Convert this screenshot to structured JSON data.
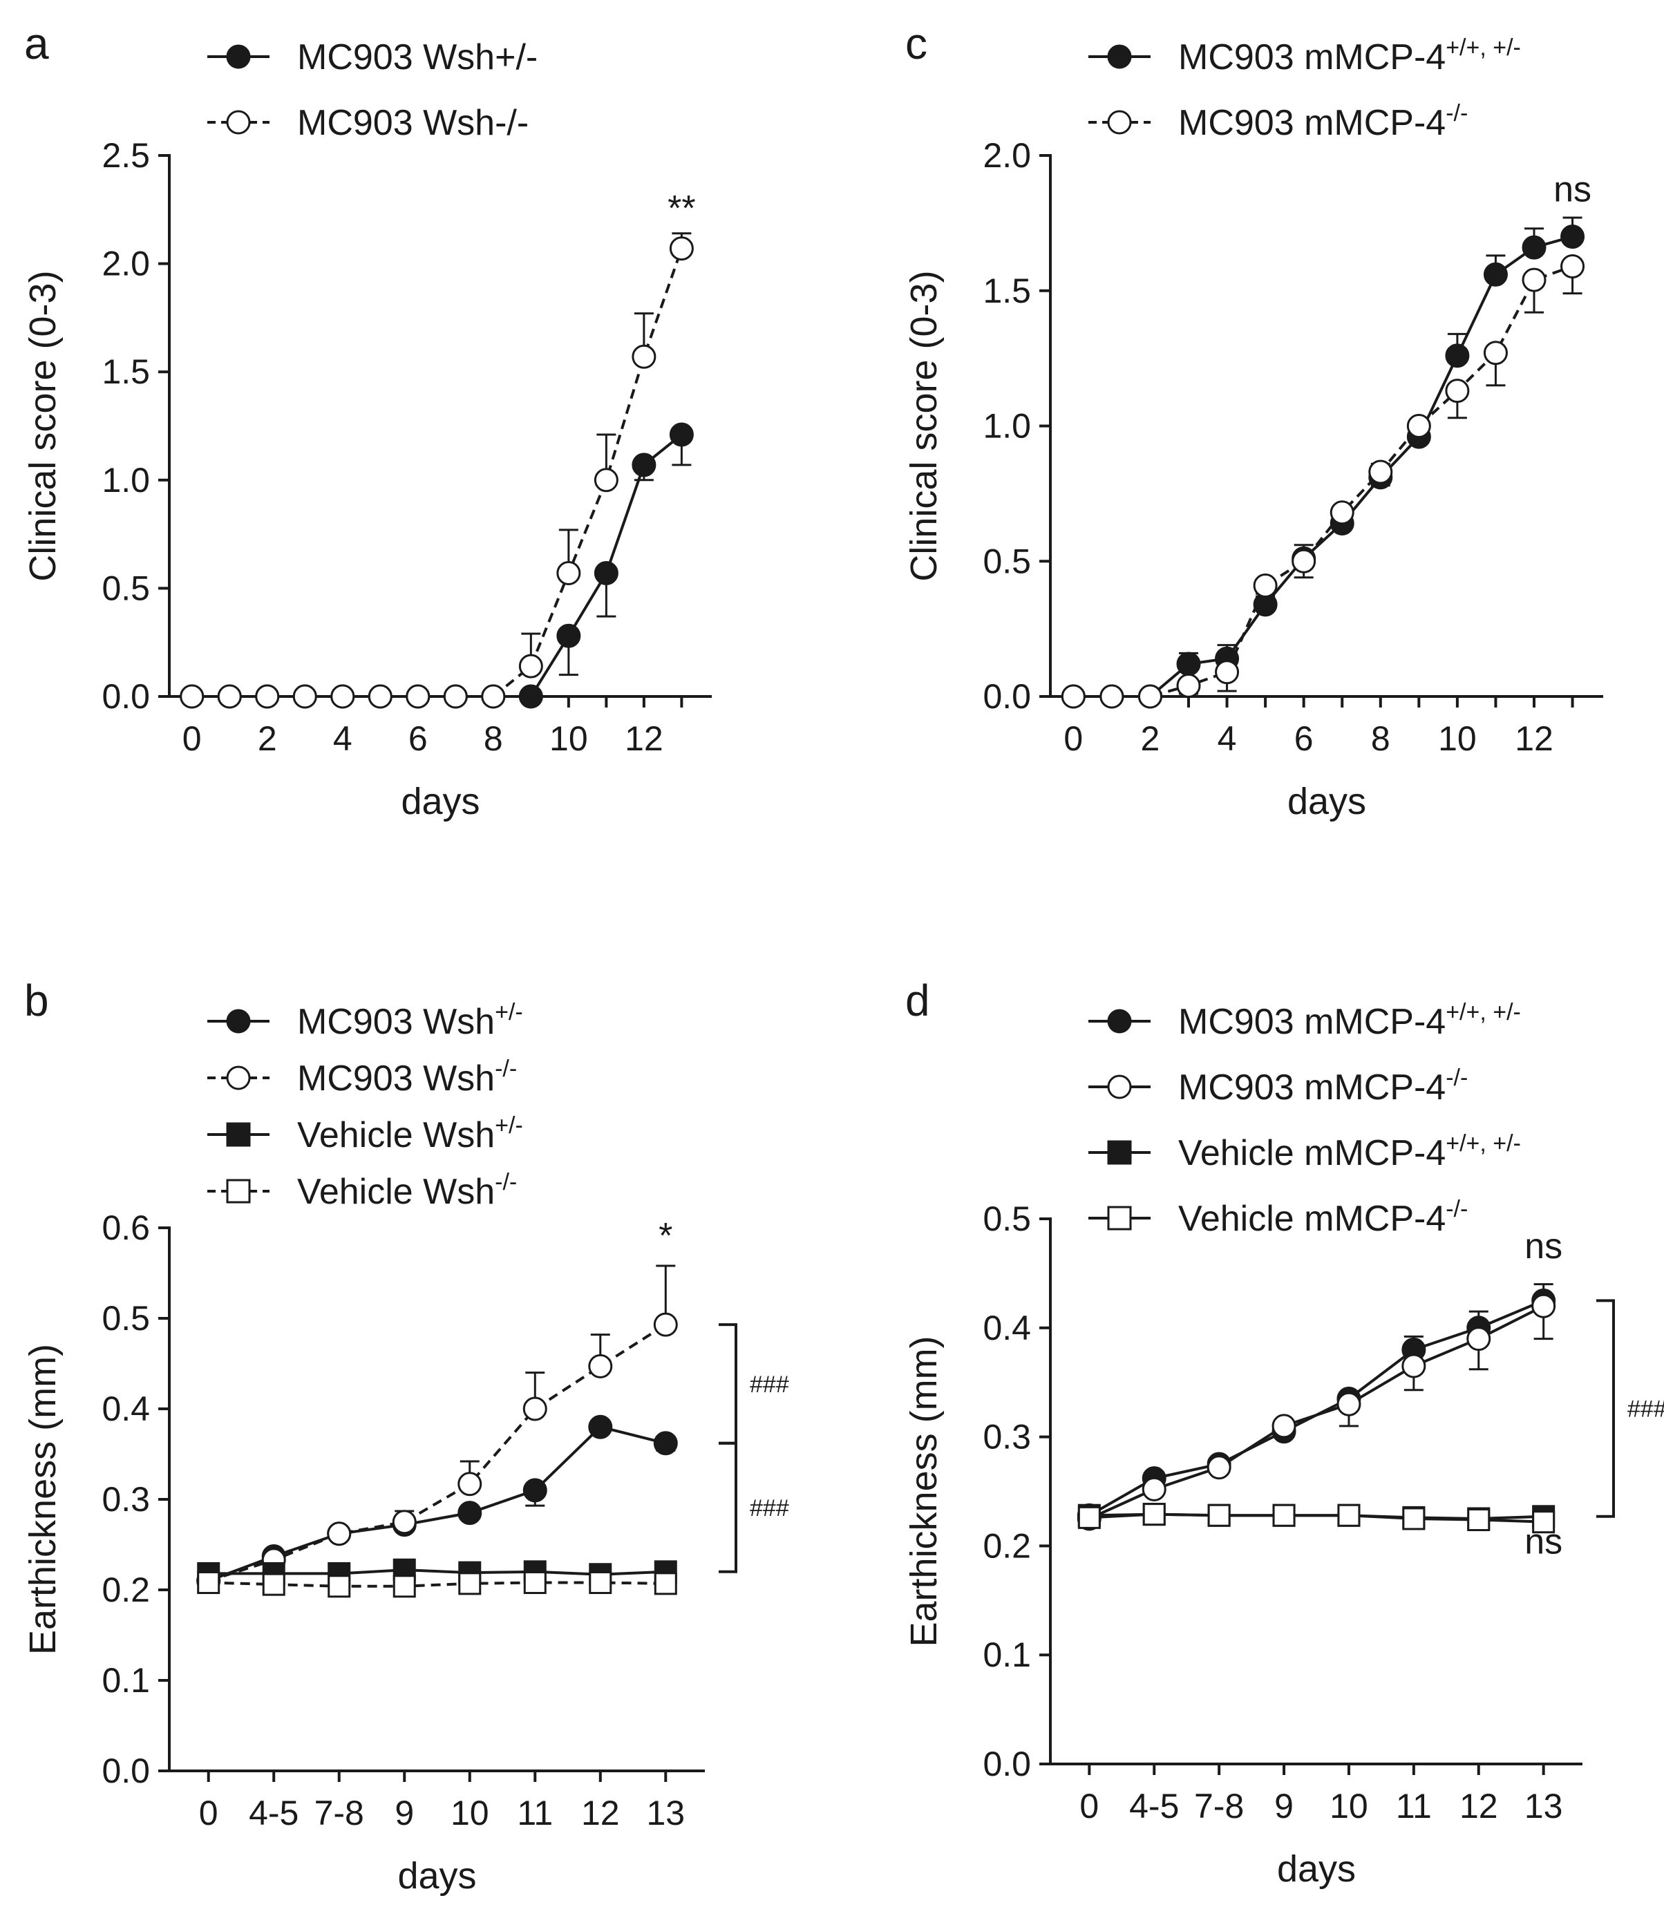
{
  "figure": {
    "background": "#ffffff",
    "ink": "#1a1a1a"
  },
  "chart_data": [
    {
      "panel": "a",
      "type": "line",
      "xlabel": "days",
      "ylabel": "Clinical score (0-3)",
      "ylim": [
        0,
        2.5
      ],
      "yticks": [
        "0.0",
        "0.5",
        "1.0",
        "1.5",
        "2.0",
        "2.5"
      ],
      "xlim": [
        -0.6,
        13.8
      ],
      "xticks": [
        "0",
        "2",
        "4",
        "6",
        "8",
        "10",
        "12"
      ],
      "x": [
        0,
        1,
        2,
        3,
        4,
        5,
        6,
        7,
        8,
        9,
        10,
        11,
        12,
        13
      ],
      "legend_position": "top-left",
      "series": [
        {
          "name": "MC903 Wsh+/-",
          "marker": "filled-circle",
          "line": "solid",
          "values": [
            0,
            0,
            0,
            0,
            0,
            0,
            0,
            0,
            0,
            0,
            0.28,
            0.57,
            1.07,
            1.21
          ],
          "errors": [
            0,
            0,
            0,
            0,
            0,
            0,
            0,
            0,
            0,
            0,
            0.18,
            0.2,
            0.07,
            0.14
          ],
          "error_dir": "down"
        },
        {
          "name": "MC903 Wsh-/-",
          "marker": "open-circle",
          "line": "dashed",
          "values": [
            0,
            0,
            0,
            0,
            0,
            0,
            0,
            0,
            0,
            0.14,
            0.57,
            1.0,
            1.57,
            2.07
          ],
          "errors": [
            0,
            0,
            0,
            0,
            0,
            0,
            0,
            0,
            0,
            0.15,
            0.2,
            0.21,
            0.2,
            0.07
          ],
          "error_dir": "up"
        }
      ],
      "annotations": [
        {
          "text": "**",
          "x": 13,
          "y": 2.2
        }
      ],
      "brackets": []
    },
    {
      "panel": "b",
      "type": "line",
      "xlabel": "days",
      "ylabel": "Earthickness (mm)",
      "ylim": [
        0,
        0.6
      ],
      "yticks": [
        "0.0",
        "0.1",
        "0.2",
        "0.3",
        "0.4",
        "0.5",
        "0.6"
      ],
      "xlim": [
        -0.6,
        7.6
      ],
      "xticks": [
        "0",
        "4-5",
        "7-8",
        "9",
        "10",
        "11",
        "12",
        "13"
      ],
      "x": [
        0,
        1,
        2,
        3,
        4,
        5,
        6,
        7
      ],
      "legend_position": "top-left",
      "series": [
        {
          "name": "MC903 Wsh",
          "sup": "+/-",
          "marker": "filled-circle",
          "line": "solid",
          "values": [
            0.21,
            0.237,
            0.262,
            0.272,
            0.285,
            0.31,
            0.38,
            0.362
          ],
          "errors": [
            0,
            0,
            0,
            0,
            0,
            0.017,
            0,
            0.008
          ],
          "error_dir": "down"
        },
        {
          "name": "MC903 Wsh",
          "sup": "-/-",
          "marker": "open-circle",
          "line": "dashed",
          "values": [
            0.21,
            0.233,
            0.262,
            0.275,
            0.317,
            0.4,
            0.447,
            0.493
          ],
          "errors": [
            0,
            0,
            0,
            0.012,
            0.025,
            0.04,
            0.035,
            0.065
          ],
          "error_dir": "up"
        },
        {
          "name": "Vehicle Wsh",
          "sup": "+/-",
          "marker": "filled-square",
          "line": "solid",
          "values": [
            0.218,
            0.218,
            0.218,
            0.222,
            0.219,
            0.22,
            0.217,
            0.22
          ],
          "errors": [
            0,
            0,
            0,
            0,
            0,
            0,
            0,
            0
          ],
          "error_dir": "up"
        },
        {
          "name": "Vehicle Wsh",
          "sup": "-/-",
          "marker": "open-square",
          "line": "dashed",
          "values": [
            0.208,
            0.206,
            0.204,
            0.204,
            0.207,
            0.208,
            0.208,
            0.207
          ],
          "errors": [
            0,
            0,
            0,
            0,
            0,
            0,
            0,
            0
          ],
          "error_dir": "down"
        }
      ],
      "annotations": [
        {
          "text": "*",
          "x": 7,
          "y": 0.578
        }
      ],
      "brackets": [
        {
          "y1": 0.493,
          "y2": 0.362,
          "label": "###"
        },
        {
          "y1": 0.362,
          "y2": 0.22,
          "label": "###"
        }
      ]
    },
    {
      "panel": "c",
      "type": "line",
      "xlabel": "days",
      "ylabel": "Clinical score (0-3)",
      "ylim": [
        0,
        2.0
      ],
      "yticks": [
        "0.0",
        "0.5",
        "1.0",
        "1.5",
        "2.0"
      ],
      "xlim": [
        -0.6,
        13.8
      ],
      "xticks": [
        "0",
        "2",
        "4",
        "6",
        "8",
        "10",
        "12"
      ],
      "x": [
        0,
        1,
        2,
        3,
        4,
        5,
        6,
        7,
        8,
        9,
        10,
        11,
        12,
        13
      ],
      "legend_position": "top-left",
      "series": [
        {
          "name": "MC903 mMCP-4",
          "sup": "+/+, +/-",
          "marker": "filled-circle",
          "line": "solid",
          "values": [
            0,
            0,
            0,
            0.12,
            0.14,
            0.34,
            0.51,
            0.64,
            0.81,
            0.96,
            1.26,
            1.56,
            1.66,
            1.7
          ],
          "errors": [
            0,
            0,
            0,
            0.04,
            0.05,
            0.04,
            0.05,
            0.04,
            0.05,
            0.05,
            0.08,
            0.07,
            0.07,
            0.07
          ],
          "error_dir": "up"
        },
        {
          "name": "MC903 mMCP-4",
          "sup": "-/-",
          "marker": "open-circle",
          "line": "dashed",
          "values": [
            0,
            0,
            0,
            0.04,
            0.09,
            0.41,
            0.5,
            0.68,
            0.83,
            1.0,
            1.13,
            1.27,
            1.54,
            1.59
          ],
          "errors": [
            0,
            0,
            0,
            0.03,
            0.07,
            0.04,
            0.06,
            0.04,
            0.05,
            0.04,
            0.1,
            0.12,
            0.12,
            0.1
          ],
          "error_dir": "down"
        }
      ],
      "annotations": [
        {
          "text": "ns",
          "x": 13,
          "y": 1.83
        }
      ],
      "brackets": []
    },
    {
      "panel": "d",
      "type": "line",
      "xlabel": "days",
      "ylabel": "Earthickness (mm)",
      "ylim": [
        0,
        0.5
      ],
      "yticks": [
        "0.0",
        "0.1",
        "0.2",
        "0.3",
        "0.4",
        "0.5"
      ],
      "xlim": [
        -0.6,
        7.6
      ],
      "xticks": [
        "0",
        "4-5",
        "7-8",
        "9",
        "10",
        "11",
        "12",
        "13"
      ],
      "x": [
        0,
        1,
        2,
        3,
        4,
        5,
        6,
        7
      ],
      "legend_position": "top-left",
      "series": [
        {
          "name": "MC903 mMCP-4",
          "sup": "+/+, +/-",
          "marker": "filled-circle",
          "line": "solid",
          "values": [
            0.228,
            0.262,
            0.275,
            0.305,
            0.335,
            0.38,
            0.4,
            0.425
          ],
          "errors": [
            0,
            0,
            0,
            0,
            0,
            0.012,
            0.015,
            0.015
          ],
          "error_dir": "up"
        },
        {
          "name": "MC903 mMCP-4",
          "sup": "-/-",
          "marker": "open-circle",
          "line": "solid",
          "values": [
            0.225,
            0.252,
            0.272,
            0.31,
            0.33,
            0.365,
            0.39,
            0.42
          ],
          "errors": [
            0,
            0,
            0,
            0,
            0.02,
            0.022,
            0.028,
            0.03
          ],
          "error_dir": "down"
        },
        {
          "name": "Vehicle mMCP-4",
          "sup": "+/+, +/-",
          "marker": "filled-square",
          "line": "solid",
          "values": [
            0.228,
            0.229,
            0.228,
            0.228,
            0.228,
            0.226,
            0.225,
            0.227
          ],
          "errors": [
            0,
            0,
            0,
            0,
            0,
            0,
            0,
            0
          ],
          "error_dir": "up"
        },
        {
          "name": "Vehicle mMCP-4",
          "sup": "-/-",
          "marker": "open-square",
          "line": "solid",
          "values": [
            0.226,
            0.229,
            0.228,
            0.228,
            0.228,
            0.225,
            0.224,
            0.222
          ],
          "errors": [
            0,
            0,
            0,
            0,
            0,
            0,
            0,
            0
          ],
          "error_dir": "down"
        }
      ],
      "annotations": [
        {
          "text": "ns",
          "x": 7,
          "y": 0.464
        },
        {
          "text": "ns",
          "x": 7,
          "y": 0.193
        }
      ],
      "brackets": [
        {
          "y1": 0.425,
          "y2": 0.227,
          "label": "###"
        }
      ]
    }
  ]
}
